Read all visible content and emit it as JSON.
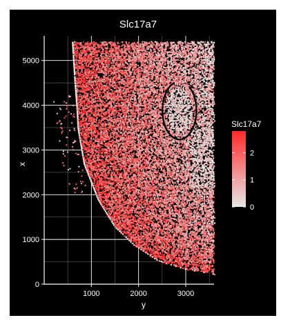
{
  "chart_data": {
    "type": "scatter",
    "subtype": "spatial-expression",
    "title": "Slc17a7",
    "xlabel": "y",
    "ylabel": "x",
    "x_ticks": [
      1000,
      2000,
      3000
    ],
    "y_ticks": [
      0,
      1000,
      2000,
      3000,
      4000,
      5000
    ],
    "xlim": [
      0,
      3600
    ],
    "ylim": [
      0,
      5550
    ],
    "grid": true,
    "legend": {
      "title": "Slc17a7",
      "placement": "right",
      "ticks": [
        0,
        1,
        2
      ],
      "range": [
        0,
        2.8
      ],
      "colors": {
        "low": "#e6e6e6",
        "high": "#ff2a2a"
      }
    },
    "theme": {
      "background": "#000000",
      "grid": "#ffffff",
      "text": "#ffffff"
    },
    "tissue_outline": {
      "left_edge": [
        [
          600,
          5450
        ],
        [
          650,
          4600
        ],
        [
          700,
          3900
        ],
        [
          720,
          3500
        ],
        [
          850,
          2700
        ],
        [
          1150,
          1900
        ],
        [
          1500,
          1300
        ],
        [
          1900,
          900
        ],
        [
          2400,
          550
        ],
        [
          3000,
          350
        ],
        [
          3580,
          250
        ]
      ],
      "right_edge_y": 3580,
      "top_edge_x": 5450
    },
    "cluster": {
      "center": [
        2850,
        3900
      ],
      "radius_y": 500,
      "radius_x": 900
    },
    "expression_points": []
  }
}
